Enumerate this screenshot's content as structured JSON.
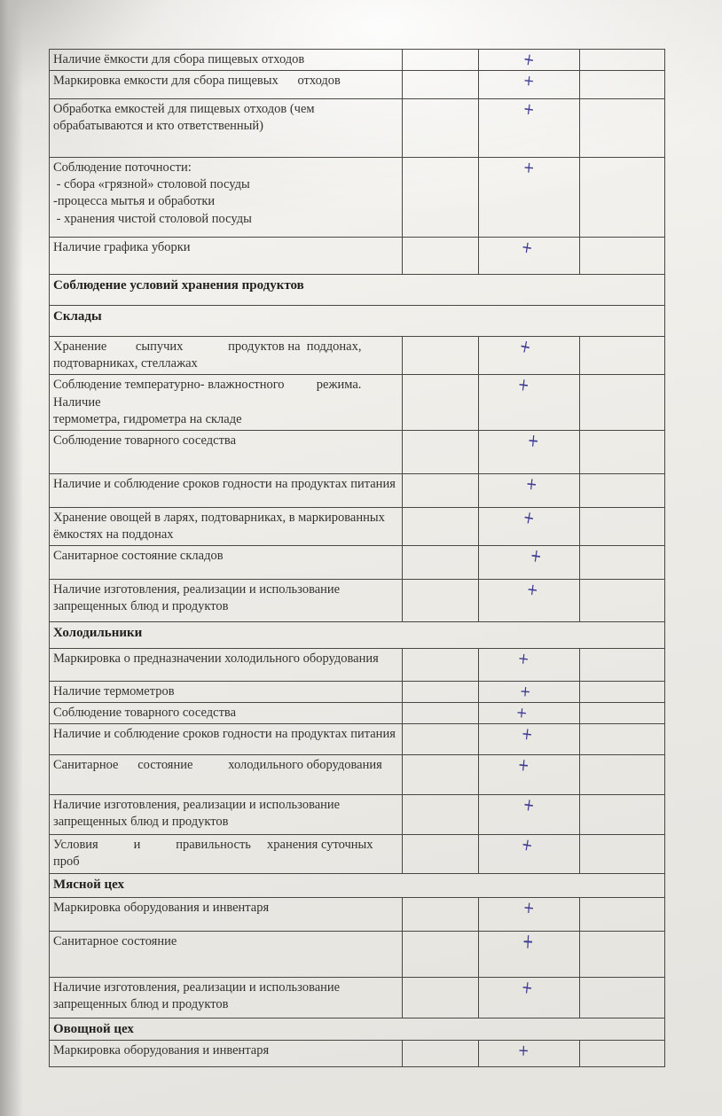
{
  "document_type": "scanned-checklist",
  "colors": {
    "ink": "#3c3a94",
    "paper": "#edebe6",
    "table_line": "#4a4742",
    "text": "#34322e"
  },
  "check_symbol": "+",
  "table": {
    "rows": [
      {
        "type": "item",
        "label": "Наличие ёмкости для сбора пищевых отходов",
        "check": "+"
      },
      {
        "type": "item",
        "label": "Маркировка емкости для сбора пищевых      отходов",
        "check": "+"
      },
      {
        "type": "item",
        "label": "Обработка емкостей для пищевых отходов (чем\nобрабатываются и кто ответственный)",
        "check": "+"
      },
      {
        "type": "item",
        "label": "Соблюдение поточности:\n - сбора «грязной» столовой посуды\n-процесса мытья и обработки\n - хранения чистой столовой посуды",
        "check": "+"
      },
      {
        "type": "item",
        "label": "Наличие графика уборки",
        "check": "+"
      },
      {
        "type": "section",
        "label": "Соблюдение условий хранения продуктов"
      },
      {
        "type": "section",
        "label": "Склады"
      },
      {
        "type": "item",
        "label": "Хранение         сыпучих              продуктов на  поддонах,\nподтоварниках, стеллажах",
        "check": "+"
      },
      {
        "type": "item",
        "label": "Соблюдение температурно- влажностного          режима.\nНаличие\nтермометра, гидрометра на складе",
        "check": "+"
      },
      {
        "type": "item",
        "label": "Соблюдение товарного соседства",
        "check": "+"
      },
      {
        "type": "item",
        "label": "Наличие и соблюдение сроков годности на продуктах питания",
        "check": "+"
      },
      {
        "type": "item",
        "label": "Хранение овощей в ларях, подтоварниках, в маркированных\nёмкостях на поддонах",
        "check": "+"
      },
      {
        "type": "item",
        "label": "Санитарное состояние складов",
        "check": "+"
      },
      {
        "type": "item",
        "label": "Наличие изготовления, реализации и использование\nзапрещенных блюд и продуктов",
        "check": "+"
      },
      {
        "type": "section",
        "label": "Холодильники"
      },
      {
        "type": "item",
        "label": "Маркировка о предназначении холодильного оборудования",
        "check": "+"
      },
      {
        "type": "item",
        "label": "Наличие термометров",
        "check": "+"
      },
      {
        "type": "item",
        "label": "Соблюдение товарного соседства",
        "check": "+"
      },
      {
        "type": "item",
        "label": "Наличие и соблюдение сроков годности на продуктах питания",
        "check": "+"
      },
      {
        "type": "item",
        "label": "Санитарное      состояние           холодильного оборудования",
        "check": "+"
      },
      {
        "type": "item",
        "label": "Наличие изготовления, реализации и использование\nзапрещенных блюд и продуктов",
        "check": "+"
      },
      {
        "type": "item",
        "label": "Условия           и           правильность     хранения суточных\nпроб",
        "check": "+"
      },
      {
        "type": "section",
        "label": "Мясной цех"
      },
      {
        "type": "item",
        "label": "Маркировка оборудования и инвентаря",
        "check": "+"
      },
      {
        "type": "item",
        "label": "Санитарное состояние",
        "check": "+"
      },
      {
        "type": "item",
        "label": "Наличие изготовления, реализации и использование\nзапрещенных блюд и продуктов",
        "check": "+"
      },
      {
        "type": "section",
        "label": "Овощной цех"
      },
      {
        "type": "item",
        "label": "Маркировка оборудования и инвентаря",
        "check": "+"
      }
    ]
  }
}
